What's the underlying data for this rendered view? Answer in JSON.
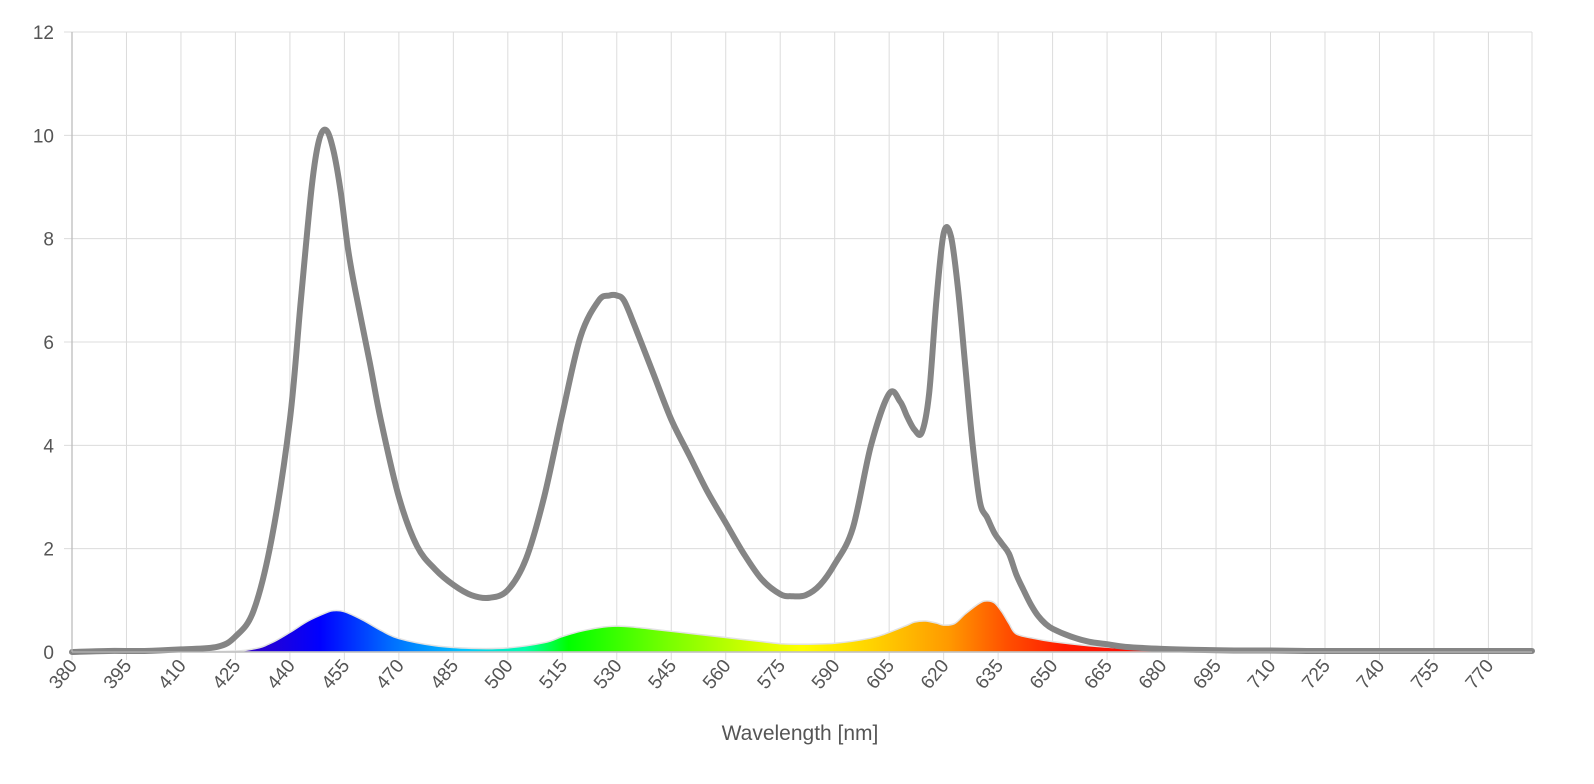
{
  "chart_data": {
    "type": "line",
    "title": "",
    "xlabel": "Wavelength [nm]",
    "ylabel": "",
    "xlim": [
      380,
      782
    ],
    "ylim": [
      0,
      12
    ],
    "grid": true,
    "legend": "none",
    "y_ticks": [
      "0",
      "2",
      "4",
      "6",
      "8",
      "10",
      "12"
    ],
    "x_ticks": [
      "380",
      "395",
      "410",
      "425",
      "440",
      "455",
      "470",
      "485",
      "500",
      "515",
      "530",
      "545",
      "560",
      "575",
      "590",
      "605",
      "620",
      "635",
      "650",
      "665",
      "680",
      "695",
      "710",
      "725",
      "740",
      "755",
      "770"
    ],
    "series": [
      {
        "line_color": "#858585",
        "x": [
          380,
          390,
          400,
          410,
          420,
          425,
          430,
          435,
          440,
          443,
          446,
          448,
          450,
          452,
          454,
          456,
          458,
          462,
          465,
          470,
          475,
          480,
          485,
          490,
          495,
          500,
          505,
          510,
          515,
          520,
          525,
          528,
          530,
          532,
          535,
          540,
          545,
          550,
          555,
          560,
          565,
          570,
          575,
          578,
          582,
          586,
          590,
          595,
          600,
          605,
          608,
          610,
          612,
          614,
          616,
          618,
          620,
          622,
          624,
          626,
          628,
          630,
          632,
          634,
          636,
          638,
          640,
          642,
          644,
          646,
          648,
          650,
          655,
          660,
          665,
          670,
          680,
          690,
          700,
          710,
          720,
          730,
          740,
          750,
          760,
          770,
          780,
          782
        ],
        "values": [
          0.0,
          0.02,
          0.02,
          0.05,
          0.1,
          0.3,
          0.8,
          2.2,
          4.5,
          6.8,
          9.0,
          9.9,
          10.1,
          9.7,
          8.9,
          7.8,
          7.0,
          5.6,
          4.5,
          3.0,
          2.05,
          1.6,
          1.3,
          1.1,
          1.05,
          1.2,
          1.8,
          3.0,
          4.6,
          6.1,
          6.8,
          6.9,
          6.9,
          6.8,
          6.3,
          5.4,
          4.5,
          3.8,
          3.1,
          2.5,
          1.9,
          1.4,
          1.12,
          1.08,
          1.1,
          1.3,
          1.7,
          2.4,
          4.0,
          5.0,
          4.85,
          4.55,
          4.3,
          4.25,
          5.0,
          6.8,
          8.1,
          8.05,
          7.0,
          5.5,
          4.0,
          2.9,
          2.6,
          2.3,
          2.1,
          1.9,
          1.5,
          1.2,
          0.92,
          0.7,
          0.55,
          0.45,
          0.3,
          0.2,
          0.15,
          0.1,
          0.06,
          0.04,
          0.03,
          0.03,
          0.02,
          0.02,
          0.02,
          0.02,
          0.02,
          0.02,
          0.02,
          0.02
        ]
      },
      {
        "fill": "spectral",
        "x": [
          380,
          420,
          430,
          435,
          440,
          445,
          450,
          452,
          455,
          460,
          465,
          470,
          480,
          490,
          500,
          510,
          515,
          520,
          525,
          530,
          535,
          540,
          550,
          560,
          570,
          575,
          580,
          590,
          600,
          605,
          610,
          612,
          615,
          618,
          620,
          623,
          626,
          630,
          632,
          634,
          636,
          638,
          640,
          645,
          650,
          660,
          670,
          680,
          700,
          720,
          740,
          760,
          780,
          782
        ],
        "values": [
          0,
          0.01,
          0.06,
          0.18,
          0.38,
          0.6,
          0.76,
          0.8,
          0.78,
          0.62,
          0.42,
          0.26,
          0.12,
          0.07,
          0.08,
          0.18,
          0.3,
          0.4,
          0.47,
          0.5,
          0.48,
          0.44,
          0.36,
          0.28,
          0.2,
          0.16,
          0.15,
          0.17,
          0.27,
          0.38,
          0.52,
          0.58,
          0.6,
          0.56,
          0.52,
          0.55,
          0.74,
          0.95,
          0.99,
          0.95,
          0.78,
          0.55,
          0.35,
          0.26,
          0.2,
          0.12,
          0.07,
          0.04,
          0.02,
          0.01,
          0.01,
          0.0,
          0.0,
          0.0
        ]
      }
    ]
  }
}
